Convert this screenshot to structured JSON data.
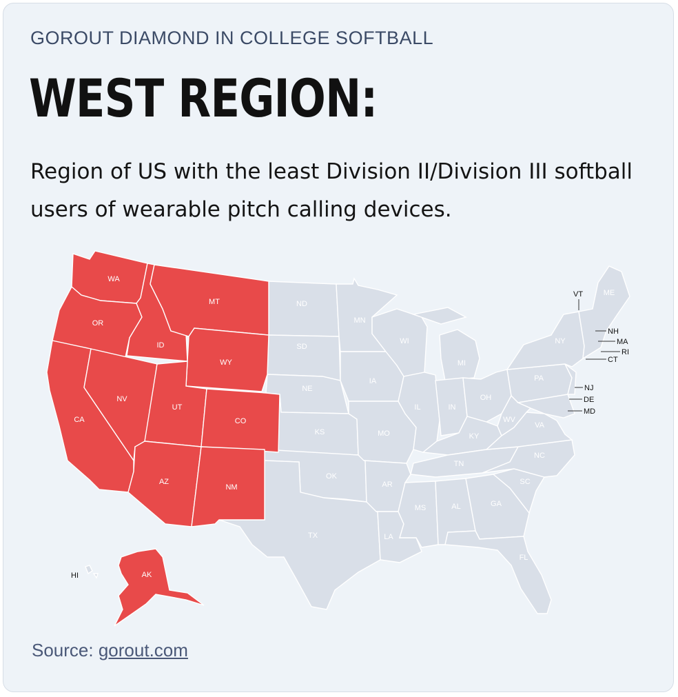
{
  "header": {
    "eyebrow": "GOROUT DIAMOND IN COLLEGE SOFTBALL",
    "title": "WEST REGION:",
    "subtitle": "Region of US with the least Division II/Division III softball users of wearable pitch calling devices."
  },
  "footer": {
    "source_label": "Source:",
    "source_link": "gorout.com"
  },
  "colors": {
    "highlight": "#e84a4a",
    "other_states": "#d9dfe8",
    "background": "#eef3f8"
  },
  "map": {
    "highlighted_region": "West",
    "west_states": [
      "WA",
      "OR",
      "CA",
      "ID",
      "NV",
      "MT",
      "WY",
      "UT",
      "CO",
      "AZ",
      "NM",
      "AK"
    ],
    "other_states": [
      "ND",
      "SD",
      "NE",
      "KS",
      "OK",
      "TX",
      "MN",
      "IA",
      "MO",
      "AR",
      "LA",
      "WI",
      "IL",
      "MS",
      "MI",
      "IN",
      "KY",
      "TN",
      "AL",
      "OH",
      "WV",
      "VA",
      "NC",
      "SC",
      "GA",
      "FL",
      "PA",
      "NY",
      "ME",
      "HI"
    ],
    "callout_states": [
      "VT",
      "NH",
      "MA",
      "RI",
      "CT",
      "NJ",
      "DE",
      "MD"
    ]
  }
}
